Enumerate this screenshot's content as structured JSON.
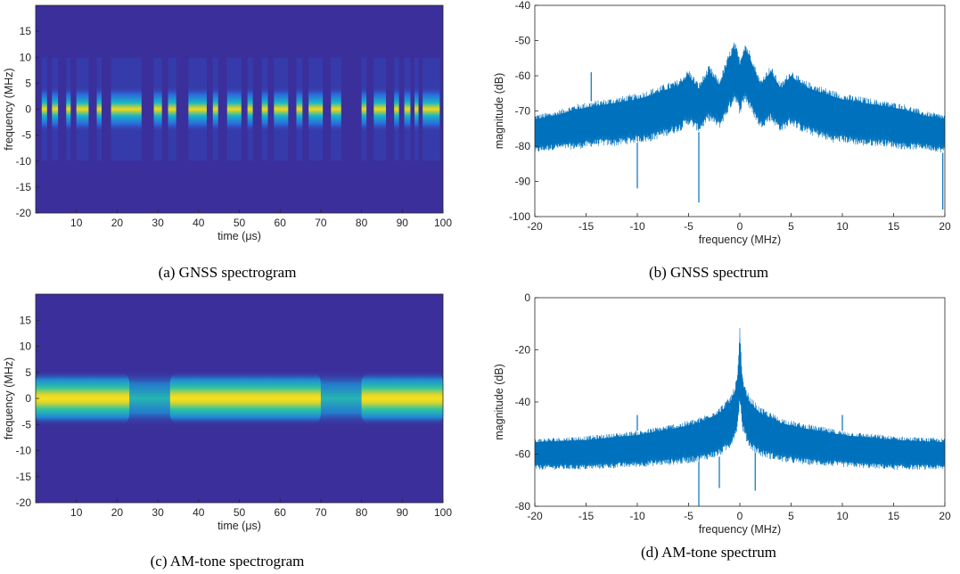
{
  "chart_data": [
    {
      "type": "heatmap",
      "title": "",
      "caption": "(a) GNSS spectrogram",
      "xlabel": "time (μs)",
      "ylabel": "frequency (MHz)",
      "xlim": [
        0,
        100
      ],
      "ylim": [
        -20,
        20
      ],
      "xticks": [
        10,
        20,
        30,
        40,
        50,
        60,
        70,
        80,
        90,
        100
      ],
      "yticks": [
        15,
        10,
        5,
        0,
        -5,
        -10,
        -15,
        -20
      ],
      "background_color": "#3b2f9c",
      "band_center_mhz": 0,
      "band_halfwidth_mhz": 4.5,
      "active_intervals_us": [
        [
          1.5,
          2.8
        ],
        [
          4.0,
          5.5
        ],
        [
          7.5,
          8.6
        ],
        [
          10.0,
          13.0
        ],
        [
          15.0,
          16.2
        ],
        [
          18.5,
          26.0
        ],
        [
          29.0,
          31.0
        ],
        [
          32.5,
          34.5
        ],
        [
          37.5,
          42.0
        ],
        [
          43.5,
          44.8
        ],
        [
          47.0,
          50.5
        ],
        [
          52.0,
          53.3
        ],
        [
          55.5,
          57.0
        ],
        [
          58.5,
          62.0
        ],
        [
          64.0,
          65.5
        ],
        [
          67.0,
          70.5
        ],
        [
          72.5,
          75.0
        ],
        [
          80.0,
          81.2
        ],
        [
          83.0,
          86.0
        ],
        [
          88.0,
          89.2
        ],
        [
          90.5,
          92.0
        ],
        [
          93.0,
          94.0
        ],
        [
          95.0,
          99.2
        ]
      ]
    },
    {
      "type": "line",
      "title": "",
      "caption": "(b) GNSS spectrum",
      "xlabel": "frequency (MHz)",
      "ylabel": "magnitude (dB)",
      "xlim": [
        -20,
        20
      ],
      "ylim": [
        -100,
        -40
      ],
      "xticks": [
        -20,
        -15,
        -10,
        -5,
        0,
        5,
        10,
        15,
        20
      ],
      "yticks": [
        -40,
        -50,
        -60,
        -70,
        -80,
        -90,
        -100
      ],
      "series_color": "#0072bd",
      "series": [
        {
          "x": [
            -20,
            -18,
            -16,
            -14,
            -12,
            -10,
            -9,
            -8,
            -7,
            -6,
            -5,
            -4,
            -3,
            -2,
            -1,
            -0.5,
            0,
            0.5,
            1,
            2,
            3,
            4,
            5,
            6,
            7,
            8,
            9,
            10,
            12,
            14,
            16,
            18,
            20
          ],
          "upper": [
            -71,
            -70,
            -68,
            -67,
            -66,
            -65,
            -64,
            -63,
            -62,
            -61,
            -58,
            -62,
            -57,
            -61,
            -53,
            -50,
            -55,
            -50,
            -53,
            -61,
            -57,
            -62,
            -58,
            -61,
            -62,
            -63,
            -64,
            -65,
            -66,
            -67,
            -68,
            -70,
            -71
          ],
          "lower": [
            -82,
            -81,
            -81,
            -80,
            -80,
            -79,
            -79,
            -78,
            -77,
            -76,
            -74,
            -76,
            -73,
            -75,
            -70,
            -67,
            -71,
            -67,
            -70,
            -75,
            -73,
            -76,
            -74,
            -76,
            -77,
            -78,
            -79,
            -79,
            -80,
            -80,
            -81,
            -81,
            -82
          ],
          "spikes": [
            [
              -14.5,
              -59
            ],
            [
              -4,
              -96
            ],
            [
              -10,
              -92
            ],
            [
              19.8,
              -98
            ]
          ]
        }
      ]
    },
    {
      "type": "heatmap",
      "title": "",
      "caption": "(c) AM-tone spectrogram",
      "xlabel": "time (μs)",
      "ylabel": "frequency (MHz)",
      "xlim": [
        0,
        100
      ],
      "ylim": [
        -20,
        20
      ],
      "xticks": [
        10,
        20,
        30,
        40,
        50,
        60,
        70,
        80,
        90,
        100
      ],
      "yticks": [
        15,
        10,
        5,
        0,
        -5,
        -10,
        -15,
        -20
      ],
      "background_color": "#3b2f9c",
      "band_center_mhz": 0,
      "band_halfwidth_mhz": 5.5,
      "bright_intervals_us": [
        [
          0,
          23
        ],
        [
          33,
          70
        ],
        [
          80,
          100
        ]
      ]
    },
    {
      "type": "line",
      "title": "",
      "caption": "(d) AM-tone spectrum",
      "xlabel": "frequency (MHz)",
      "ylabel": "magnitude (dB)",
      "xlim": [
        -20,
        20
      ],
      "ylim": [
        -80,
        0
      ],
      "xticks": [
        -20,
        -15,
        -10,
        -5,
        0,
        5,
        10,
        15,
        20
      ],
      "yticks": [
        0,
        -20,
        -40,
        -60,
        -80
      ],
      "series_color": "#0072bd",
      "series": [
        {
          "x": [
            -20,
            -15,
            -10,
            -6,
            -4,
            -2,
            -1,
            -0.5,
            -0.2,
            0,
            0.2,
            0.5,
            1,
            2,
            4,
            6,
            10,
            15,
            20
          ],
          "upper": [
            -54,
            -53,
            -51,
            -48,
            -46,
            -42,
            -38,
            -34,
            -28,
            -11,
            -28,
            -34,
            -38,
            -42,
            -46,
            -48,
            -51,
            -53,
            -54
          ],
          "lower": [
            -66,
            -66,
            -65,
            -64,
            -63,
            -61,
            -58,
            -54,
            -50,
            -40,
            -50,
            -54,
            -58,
            -61,
            -63,
            -64,
            -65,
            -66,
            -66
          ],
          "spikes": [
            [
              -10,
              -45
            ],
            [
              10,
              -45
            ],
            [
              -4,
              -80
            ],
            [
              -2,
              -73
            ],
            [
              1.5,
              -74
            ]
          ]
        }
      ]
    }
  ]
}
